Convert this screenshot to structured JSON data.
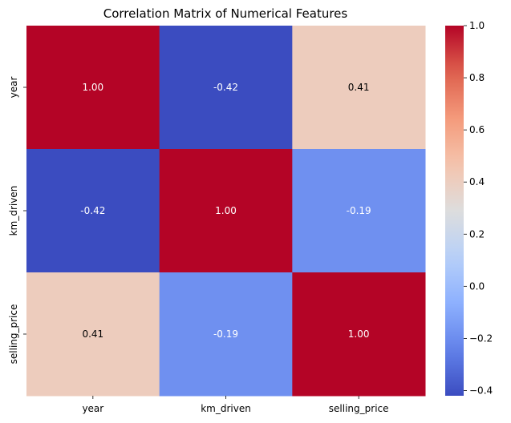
{
  "chart_data": {
    "type": "heatmap",
    "title": "Correlation Matrix of Numerical Features",
    "x_labels": [
      "year",
      "km_driven",
      "selling_price"
    ],
    "y_labels": [
      "year",
      "km_driven",
      "selling_price"
    ],
    "values": [
      [
        1.0,
        -0.42,
        0.41
      ],
      [
        -0.42,
        1.0,
        -0.19
      ],
      [
        0.41,
        -0.19,
        1.0
      ]
    ],
    "cell_labels": [
      [
        "1.00",
        "-0.42",
        "0.41"
      ],
      [
        "-0.42",
        "1.00",
        "-0.19"
      ],
      [
        "0.41",
        "-0.19",
        "1.00"
      ]
    ],
    "colormap": "coolwarm",
    "colorbar": {
      "range": [
        -0.42,
        1.0
      ],
      "ticks": [
        1.0,
        0.8,
        0.6,
        0.4,
        0.2,
        0.0,
        -0.2,
        -0.4
      ],
      "tick_labels": [
        "1.0",
        "0.8",
        "0.6",
        "0.4",
        "0.2",
        "0.0",
        "−0.2",
        "−0.4"
      ]
    }
  }
}
